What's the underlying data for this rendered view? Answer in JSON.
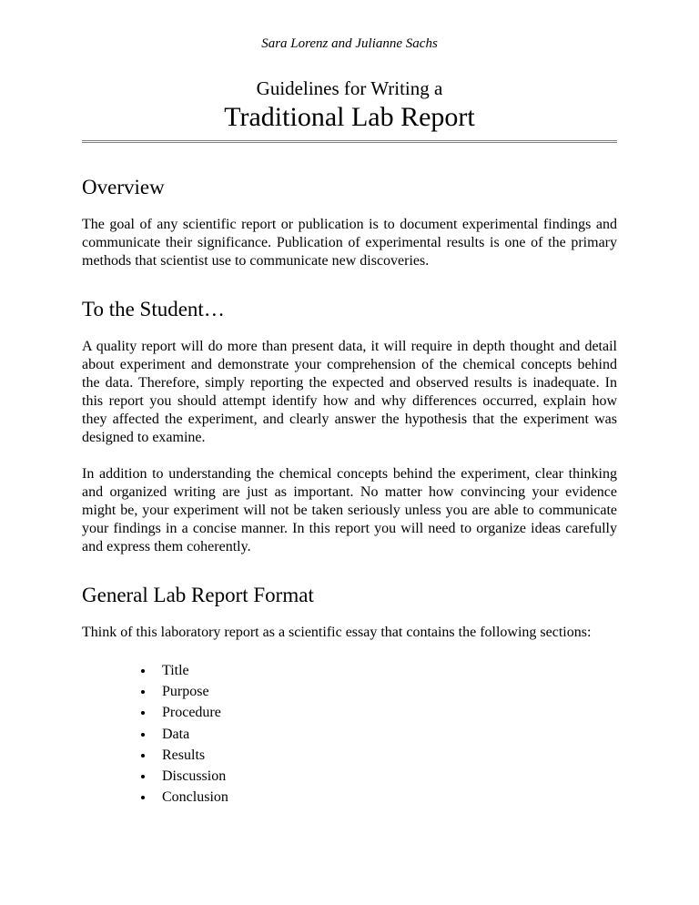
{
  "header": {
    "authors": "Sara Lorenz and Julianne Sachs",
    "subtitle": "Guidelines for Writing a",
    "title": "Traditional Lab Report"
  },
  "overview": {
    "heading": "Overview",
    "body": "The goal of any scientific report or publication is to document experimental findings and communicate their significance.  Publication of experimental results is one of the primary methods that scientist use to communicate new discoveries."
  },
  "student": {
    "heading": "To the Student…",
    "p1": "A quality report will do more than present data, it will require in depth thought and detail about experiment and demonstrate your comprehension of the chemical concepts behind the data.  Therefore, simply reporting the expected and observed results is inadequate.  In this report you should attempt identify how and why differences occurred, explain how they affected the experiment, and clearly answer the hypothesis that the experiment was designed to examine.",
    "p2": "In addition to understanding the chemical concepts behind the experiment, clear thinking and organized writing are just as important.  No matter how convincing your evidence might be, your experiment will not be taken seriously unless you are able to communicate your findings in a concise manner.  In this report you will need to organize ideas carefully and express them coherently."
  },
  "format": {
    "heading": "General Lab Report Format",
    "intro": "Think of this laboratory report as a scientific essay that contains the following sections:",
    "items": [
      "Title",
      "Purpose",
      "Procedure",
      "Data",
      "Results",
      "Discussion",
      "Conclusion"
    ]
  }
}
